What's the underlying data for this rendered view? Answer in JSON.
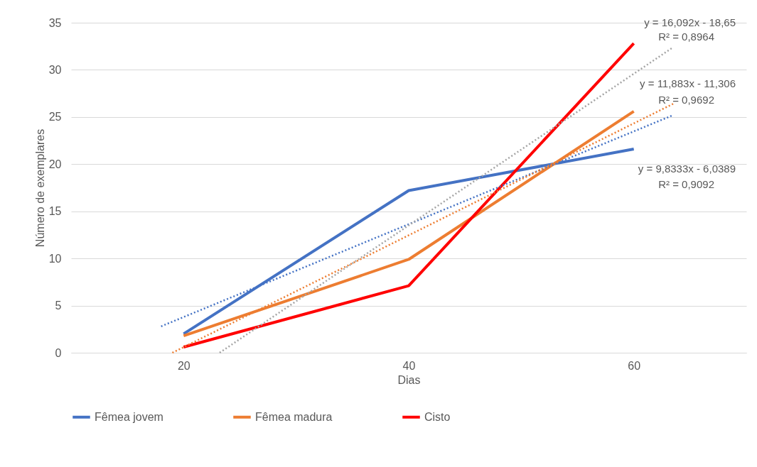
{
  "chart_data": {
    "type": "line",
    "xlabel": "Dias",
    "ylabel": "Número de exemplares",
    "x": [
      20,
      40,
      60
    ],
    "xlim": [
      10,
      70
    ],
    "xticks": [
      20,
      40,
      60
    ],
    "ylim": [
      0,
      35
    ],
    "yticks": [
      0,
      5,
      10,
      15,
      20,
      25,
      30,
      35
    ],
    "grid": "y",
    "legend": "bottom",
    "line_style": "solid",
    "series": [
      {
        "name": "Fêmea jovem",
        "color": "#4472c4",
        "values": [
          2,
          17.2,
          21.6
        ]
      },
      {
        "name": "Fêmea madura",
        "color": "#ed7d31",
        "values": [
          1.8,
          9.9,
          25.6
        ]
      },
      {
        "name": "Cisto",
        "color": "#ff0000",
        "values": [
          0.6,
          7.1,
          32.8
        ]
      },
      {
        "type": "line",
        "color": "#4472c4",
        "line_style": "dotted",
        "x": [
          18,
          63.5
        ],
        "values": [
          2.8,
          25.2
        ]
      },
      {
        "type": "line",
        "color": "#ed7d31",
        "line_style": "dotted",
        "x": [
          19,
          63.5
        ],
        "values": [
          0,
          26.4
        ]
      },
      {
        "type": "line",
        "color": "#a5a5a5",
        "line_style": "dotted",
        "x": [
          23.2,
          63.5
        ],
        "values": [
          0,
          32.4
        ]
      }
    ],
    "annotations": [
      "y = 16,092x - 18,65",
      "R² = 0,8964",
      "y = 11,883x - 11,306",
      "R² = 0,9692",
      "y = 9,8333x - 6,0389",
      "R² = 0,9092"
    ]
  }
}
